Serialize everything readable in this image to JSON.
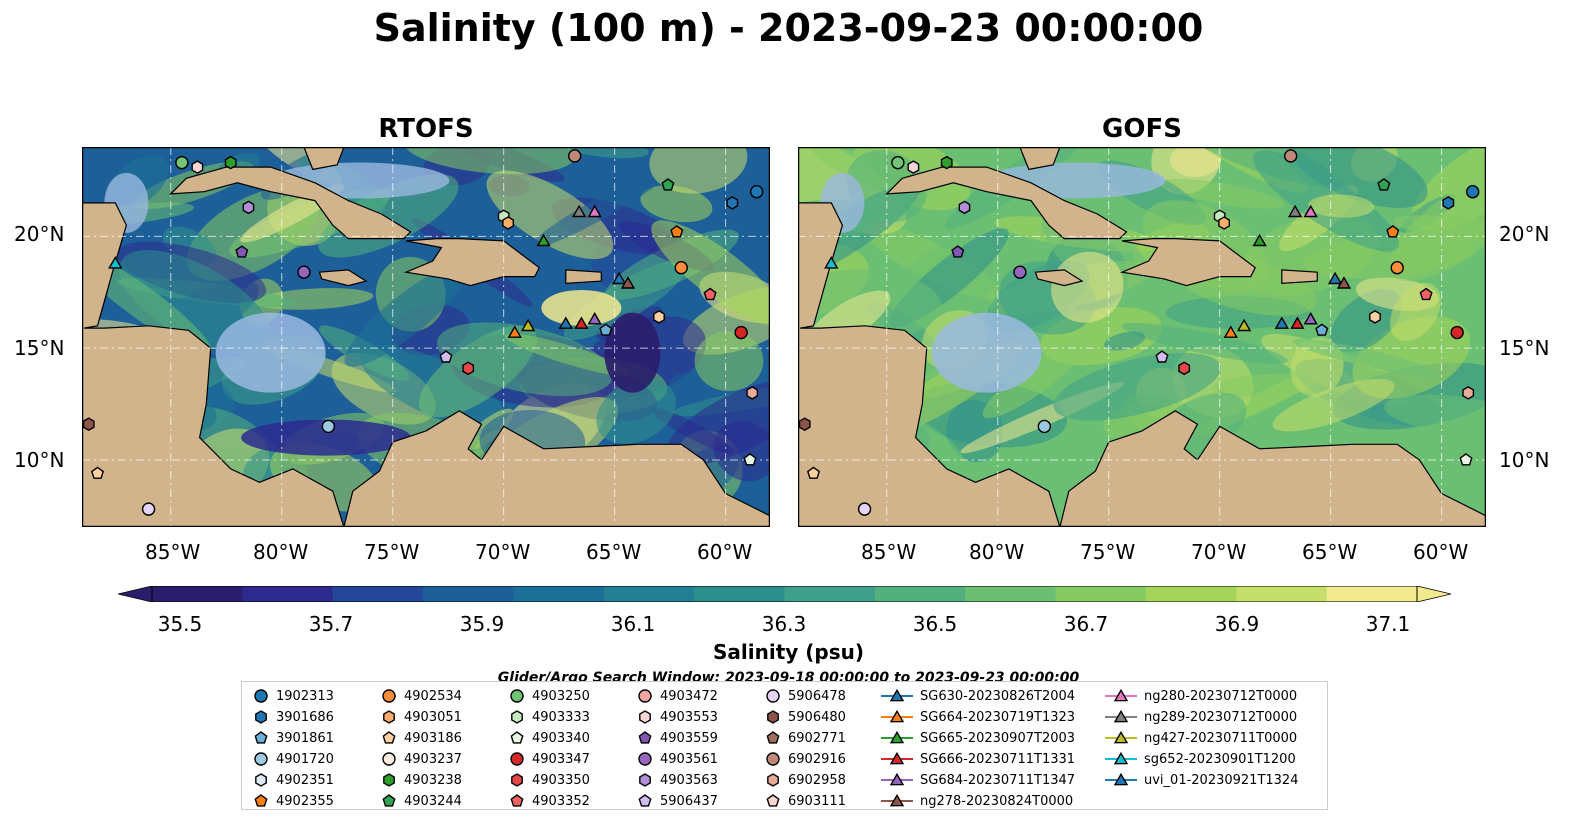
{
  "title": "Salinity (100 m) - 2023-09-23 00:00:00",
  "chart_data": [
    {
      "type": "heatmap",
      "title": "RTOFS",
      "variable": "Salinity (psu)",
      "x_ticks": [
        "85°W",
        "80°W",
        "75°W",
        "70°W",
        "65°W",
        "60°W"
      ],
      "y_ticks": [
        "10°N",
        "15°N",
        "20°N"
      ],
      "xlim": [
        -89,
        -58
      ],
      "ylim": [
        7,
        24
      ],
      "grid": true
    },
    {
      "type": "heatmap",
      "title": "GOFS",
      "variable": "Salinity (psu)",
      "x_ticks": [
        "85°W",
        "80°W",
        "75°W",
        "70°W",
        "65°W",
        "60°W"
      ],
      "y_ticks": [
        "10°N",
        "15°N",
        "20°N"
      ],
      "xlim": [
        -89,
        -58
      ],
      "ylim": [
        7,
        24
      ],
      "grid": true
    }
  ],
  "colorbar": {
    "label": "Salinity (psu)",
    "range": [
      35.5,
      37.1
    ],
    "ticks": [
      "35.5",
      "35.7",
      "35.9",
      "36.1",
      "36.3",
      "36.5",
      "36.7",
      "36.9",
      "37.1"
    ],
    "colors": [
      "#2a1d6b",
      "#2c2a8f",
      "#24479a",
      "#1d5f98",
      "#1c6f96",
      "#237f93",
      "#2d8f8c",
      "#3ea088",
      "#52b07e",
      "#6bbf72",
      "#86cb62",
      "#a4d55a",
      "#c6df6a",
      "#f2ea8e"
    ]
  },
  "search_window": "Glider/Argo Search Window: 2023-09-18 00:00:00 to 2023-09-23 00:00:00",
  "legend": {
    "columns": [
      [
        {
          "label": "1902313",
          "marker": "circle",
          "color": "#1f77b4"
        },
        {
          "label": "3901686",
          "marker": "hexagon",
          "color": "#1f77b4"
        },
        {
          "label": "3901861",
          "marker": "pentagon",
          "color": "#6baed6"
        },
        {
          "label": "4901720",
          "marker": "circle",
          "color": "#9ecae1"
        },
        {
          "label": "4902351",
          "marker": "hexagon",
          "color": "#deebf7"
        },
        {
          "label": "4902355",
          "marker": "pentagon",
          "color": "#ff7f0e"
        }
      ],
      [
        {
          "label": "4902534",
          "marker": "circle",
          "color": "#fd8d3c"
        },
        {
          "label": "4903051",
          "marker": "hexagon",
          "color": "#fdae6b"
        },
        {
          "label": "4903186",
          "marker": "pentagon",
          "color": "#fdd0a2"
        },
        {
          "label": "4903237",
          "marker": "circle",
          "color": "#feedde"
        },
        {
          "label": "4903238",
          "marker": "hexagon",
          "color": "#2ca02c"
        },
        {
          "label": "4903244",
          "marker": "pentagon",
          "color": "#31a354"
        }
      ],
      [
        {
          "label": "4903250",
          "marker": "circle",
          "color": "#74c476"
        },
        {
          "label": "4903333",
          "marker": "hexagon",
          "color": "#c7e9c0"
        },
        {
          "label": "4903340",
          "marker": "pentagon",
          "color": "#e5f5e0"
        },
        {
          "label": "4903347",
          "marker": "circle",
          "color": "#d62728"
        },
        {
          "label": "4903350",
          "marker": "hexagon",
          "color": "#e6484a"
        },
        {
          "label": "4903352",
          "marker": "pentagon",
          "color": "#f06262"
        }
      ],
      [
        {
          "label": "4903472",
          "marker": "circle",
          "color": "#f4a3a3"
        },
        {
          "label": "4903553",
          "marker": "hexagon",
          "color": "#fcd5d5"
        },
        {
          "label": "4903559",
          "marker": "pentagon",
          "color": "#8256b3"
        },
        {
          "label": "4903561",
          "marker": "circle",
          "color": "#9467bd"
        },
        {
          "label": "4903563",
          "marker": "hexagon",
          "color": "#b08fd6"
        },
        {
          "label": "5906437",
          "marker": "pentagon",
          "color": "#d3bdf0"
        }
      ],
      [
        {
          "label": "5906478",
          "marker": "circle",
          "color": "#e5d4f7"
        },
        {
          "label": "5906480",
          "marker": "hexagon",
          "color": "#8c564b"
        },
        {
          "label": "6902771",
          "marker": "pentagon",
          "color": "#a0705f"
        },
        {
          "label": "6902916",
          "marker": "circle",
          "color": "#c08878"
        },
        {
          "label": "6902958",
          "marker": "hexagon",
          "color": "#e8ab98"
        },
        {
          "label": "6903111",
          "marker": "pentagon",
          "color": "#fbd7cc"
        }
      ],
      [
        {
          "label": "SG630-20230826T2004",
          "marker": "triangle",
          "color": "#1f77b4"
        },
        {
          "label": "SG664-20230719T1323",
          "marker": "triangle",
          "color": "#ff7f0e"
        },
        {
          "label": "SG665-20230907T2003",
          "marker": "triangle",
          "color": "#2ca02c"
        },
        {
          "label": "SG666-20230711T1331",
          "marker": "triangle",
          "color": "#d62728"
        },
        {
          "label": "SG684-20230711T1347",
          "marker": "triangle",
          "color": "#9467bd"
        },
        {
          "label": "ng278-20230824T0000",
          "marker": "triangle",
          "color": "#8c564b"
        }
      ],
      [
        {
          "label": "ng280-20230712T0000",
          "marker": "triangle",
          "color": "#e377c2"
        },
        {
          "label": "ng289-20230712T0000",
          "marker": "triangle",
          "color": "#7f7f7f"
        },
        {
          "label": "ng427-20230711T0000",
          "marker": "triangle",
          "color": "#bcbd22"
        },
        {
          "label": "sg652-20230901T1200",
          "marker": "triangle",
          "color": "#17becf"
        },
        {
          "label": "uvi_01-20230921T1324",
          "marker": "triangle",
          "color": "#1f77b4"
        }
      ]
    ]
  },
  "markers": [
    {
      "lon": -87.5,
      "lat": 18.8,
      "marker": "triangle",
      "color": "#17becf"
    },
    {
      "lon": -84.5,
      "lat": 23.3,
      "marker": "circle",
      "color": "#74c476"
    },
    {
      "lon": -83.8,
      "lat": 23.1,
      "marker": "hexagon",
      "color": "#fcd5d5"
    },
    {
      "lon": -82.3,
      "lat": 23.3,
      "marker": "hexagon",
      "color": "#2ca02c"
    },
    {
      "lon": -81.5,
      "lat": 21.3,
      "marker": "hexagon",
      "color": "#b08fd6"
    },
    {
      "lon": -81.8,
      "lat": 19.3,
      "marker": "pentagon",
      "color": "#8256b3"
    },
    {
      "lon": -79.0,
      "lat": 18.4,
      "marker": "circle",
      "color": "#9467bd"
    },
    {
      "lon": -77.9,
      "lat": 11.5,
      "marker": "circle",
      "color": "#9ecae1"
    },
    {
      "lon": -72.6,
      "lat": 14.6,
      "marker": "pentagon",
      "color": "#d3bdf0"
    },
    {
      "lon": -71.6,
      "lat": 14.1,
      "marker": "hexagon",
      "color": "#e6484a"
    },
    {
      "lon": -70.0,
      "lat": 20.9,
      "marker": "hexagon",
      "color": "#c7e9c0"
    },
    {
      "lon": -69.8,
      "lat": 20.6,
      "marker": "hexagon",
      "color": "#fdae6b"
    },
    {
      "lon": -68.2,
      "lat": 19.8,
      "marker": "triangle",
      "color": "#2ca02c"
    },
    {
      "lon": -68.9,
      "lat": 16.0,
      "marker": "triangle",
      "color": "#bcbd22"
    },
    {
      "lon": -69.5,
      "lat": 15.7,
      "marker": "triangle",
      "color": "#ff7f0e"
    },
    {
      "lon": -67.2,
      "lat": 16.1,
      "marker": "triangle",
      "color": "#1f77b4"
    },
    {
      "lon": -66.5,
      "lat": 16.1,
      "marker": "triangle",
      "color": "#d62728"
    },
    {
      "lon": -65.9,
      "lat": 16.3,
      "marker": "triangle",
      "color": "#9467bd"
    },
    {
      "lon": -65.4,
      "lat": 15.8,
      "marker": "pentagon",
      "color": "#6baed6"
    },
    {
      "lon": -66.8,
      "lat": 23.6,
      "marker": "circle",
      "color": "#c08878"
    },
    {
      "lon": -66.6,
      "lat": 21.1,
      "marker": "triangle",
      "color": "#7f7f7f"
    },
    {
      "lon": -65.9,
      "lat": 21.1,
      "marker": "triangle",
      "color": "#e377c2"
    },
    {
      "lon": -64.8,
      "lat": 18.1,
      "marker": "triangle",
      "color": "#1f77b4"
    },
    {
      "lon": -64.4,
      "lat": 17.9,
      "marker": "triangle",
      "color": "#8c564b"
    },
    {
      "lon": -63.0,
      "lat": 16.4,
      "marker": "hexagon",
      "color": "#fdd0a2"
    },
    {
      "lon": -62.0,
      "lat": 18.6,
      "marker": "circle",
      "color": "#fd8d3c"
    },
    {
      "lon": -62.2,
      "lat": 20.2,
      "marker": "pentagon",
      "color": "#ff7f0e"
    },
    {
      "lon": -62.6,
      "lat": 22.3,
      "marker": "pentagon",
      "color": "#31a354"
    },
    {
      "lon": -59.7,
      "lat": 21.5,
      "marker": "hexagon",
      "color": "#1f77b4"
    },
    {
      "lon": -58.6,
      "lat": 22.0,
      "marker": "circle",
      "color": "#1f77b4"
    },
    {
      "lon": -60.7,
      "lat": 17.4,
      "marker": "pentagon",
      "color": "#f06262"
    },
    {
      "lon": -59.3,
      "lat": 15.7,
      "marker": "circle",
      "color": "#d62728"
    },
    {
      "lon": -58.8,
      "lat": 13.0,
      "marker": "hexagon",
      "color": "#e8ab98"
    },
    {
      "lon": -58.9,
      "lat": 10.0,
      "marker": "pentagon",
      "color": "#e5f5e0"
    },
    {
      "lon": -88.7,
      "lat": 11.6,
      "marker": "hexagon",
      "color": "#8c564b"
    },
    {
      "lon": -88.3,
      "lat": 9.4,
      "marker": "pentagon",
      "color": "#fdd0a2"
    },
    {
      "lon": -86.0,
      "lat": 7.8,
      "marker": "circle",
      "color": "#e5d4f7"
    }
  ]
}
